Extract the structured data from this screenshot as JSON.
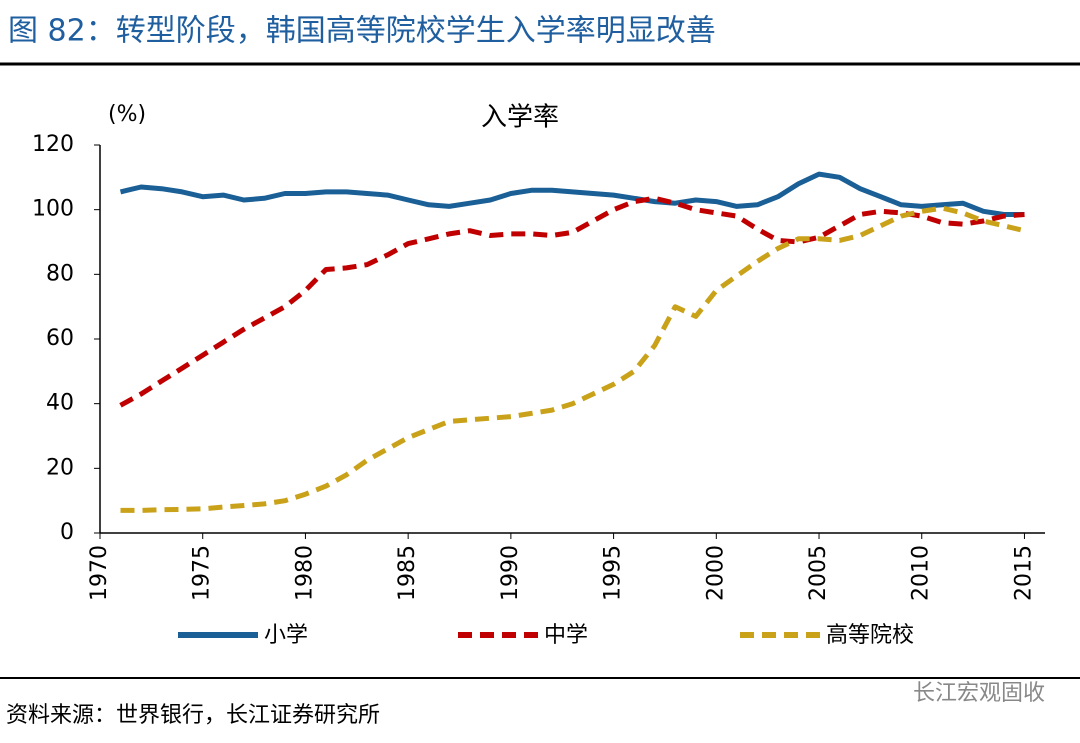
{
  "header": {
    "title": "图 82：转型阶段，韩国高等院校学生入学率明显改善"
  },
  "chart_data": {
    "type": "line",
    "title": "入学率",
    "y_label": "(%)",
    "x": [
      1971,
      1972,
      1973,
      1974,
      1975,
      1976,
      1977,
      1978,
      1979,
      1980,
      1981,
      1982,
      1983,
      1984,
      1985,
      1986,
      1987,
      1988,
      1989,
      1990,
      1991,
      1992,
      1993,
      1994,
      1995,
      1996,
      1997,
      1998,
      1999,
      2000,
      2001,
      2002,
      2003,
      2004,
      2005,
      2006,
      2007,
      2008,
      2009,
      2010,
      2011,
      2012,
      2013,
      2014,
      2015
    ],
    "series": [
      {
        "name": "小学",
        "color": "#1a5f96",
        "dashed": false,
        "values": [
          105.5,
          107,
          106.5,
          105.5,
          104,
          104.5,
          103,
          103.5,
          105,
          105,
          105.5,
          105.5,
          105,
          104.5,
          103,
          101.5,
          101,
          102,
          103,
          105,
          106,
          106,
          105.5,
          105,
          104.5,
          103.5,
          102.5,
          102,
          103,
          102.5,
          101,
          101.5,
          104,
          108,
          111,
          110,
          106.5,
          104,
          101.5,
          101,
          101.5,
          102,
          99.5,
          98.5,
          98.5
        ]
      },
      {
        "name": "中学",
        "color": "#c00000",
        "dashed": true,
        "values": [
          39.5,
          43,
          47,
          51,
          55,
          59,
          63,
          66.5,
          70,
          75,
          81.5,
          82,
          83,
          86,
          89.5,
          91,
          92.5,
          93.5,
          92,
          92.5,
          92.5,
          92,
          93,
          96.5,
          100,
          102.5,
          103.5,
          102,
          100,
          99,
          98,
          94,
          90.5,
          90,
          91.5,
          95,
          98.5,
          99.5,
          99,
          98,
          96,
          95.5,
          96.5,
          98,
          98.5
        ]
      },
      {
        "name": "高等院校",
        "color": "#c9a21a",
        "dashed": true,
        "values": [
          7,
          7,
          7.2,
          7.3,
          7.5,
          8,
          8.5,
          9,
          10,
          12,
          14.5,
          18,
          22.5,
          26,
          29.5,
          32,
          34.5,
          35,
          35.5,
          36,
          37,
          38,
          40,
          43,
          46,
          50,
          58,
          70,
          67,
          75,
          79.5,
          84,
          88,
          91,
          91,
          90.5,
          92,
          95,
          98,
          99.5,
          100.5,
          99,
          96.5,
          95,
          93.5
        ]
      }
    ],
    "xlim": [
      1970,
      2016
    ],
    "xticks": [
      1970,
      1975,
      1980,
      1985,
      1990,
      1995,
      2000,
      2005,
      2010,
      2015
    ],
    "ylim": [
      0,
      120
    ],
    "yticks": [
      0,
      20,
      40,
      60,
      80,
      100,
      120
    ],
    "grid": false
  },
  "footer": {
    "source": "资料来源：世界银行，长江证券研究所",
    "watermark": "长江宏观固收"
  }
}
